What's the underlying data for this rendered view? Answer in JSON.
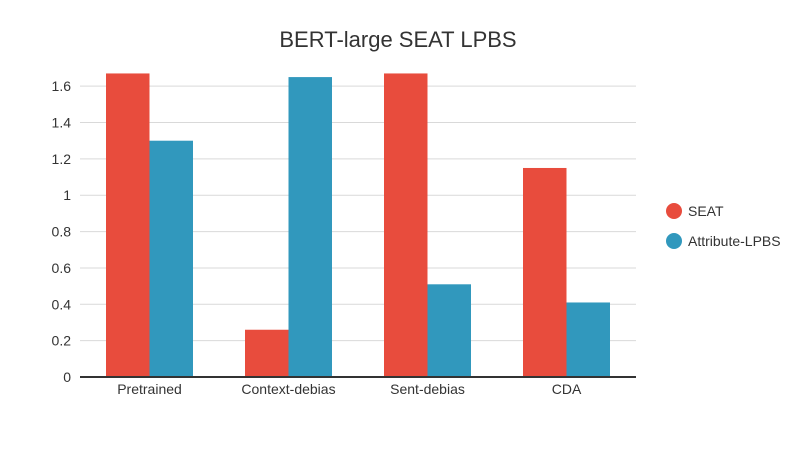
{
  "chart_data": {
    "type": "bar",
    "title": "BERT-large SEAT LPBS",
    "categories": [
      "Pretrained",
      "Context-debias",
      "Sent-debias",
      "CDA"
    ],
    "series": [
      {
        "name": "SEAT",
        "color": "#e84c3d",
        "values": [
          1.67,
          0.26,
          1.67,
          1.15
        ]
      },
      {
        "name": "Attribute-LPBS",
        "color": "#3198bd",
        "values": [
          1.3,
          1.65,
          0.51,
          0.41
        ]
      }
    ],
    "yticks": [
      "0",
      "0.2",
      "0.4",
      "0.6",
      "0.8",
      "1",
      "1.2",
      "1.4",
      "1.6"
    ],
    "ylim": [
      0,
      1.7
    ],
    "grid": true,
    "legend_position": "right"
  }
}
